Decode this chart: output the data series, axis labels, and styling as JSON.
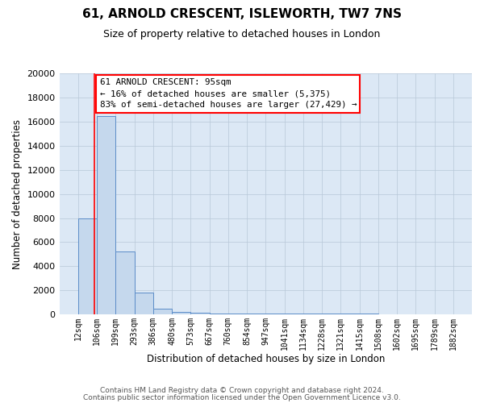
{
  "title": "61, ARNOLD CRESCENT, ISLEWORTH, TW7 7NS",
  "subtitle": "Size of property relative to detached houses in London",
  "xlabel": "Distribution of detached houses by size in London",
  "ylabel": "Number of detached properties",
  "footer_line1": "Contains HM Land Registry data © Crown copyright and database right 2024.",
  "footer_line2": "Contains public sector information licensed under the Open Government Licence v3.0.",
  "annotation_title": "61 ARNOLD CRESCENT: 95sqm",
  "annotation_line1": "← 16% of detached houses are smaller (5,375)",
  "annotation_line2": "83% of semi-detached houses are larger (27,429) →",
  "red_line_x": 95,
  "bar_edges": [
    12,
    106,
    199,
    293,
    386,
    480,
    573,
    667,
    760,
    854,
    947,
    1041,
    1134,
    1228,
    1321,
    1415,
    1508,
    1602,
    1695,
    1789,
    1882
  ],
  "bar_heights": [
    8000,
    16500,
    5200,
    1800,
    500,
    200,
    130,
    100,
    80,
    70,
    60,
    60,
    55,
    50,
    45,
    40,
    35,
    30,
    25,
    20
  ],
  "bar_color": "#c5d8ed",
  "bar_edge_color": "#5b8cc8",
  "ax_bg_color": "#dce8f5",
  "grid_color": "#b8c8d8",
  "background_color": "#ffffff",
  "ylim": [
    0,
    20000
  ],
  "yticks": [
    0,
    2000,
    4000,
    6000,
    8000,
    10000,
    12000,
    14000,
    16000,
    18000,
    20000
  ],
  "tick_labels": [
    "12sqm",
    "106sqm",
    "199sqm",
    "293sqm",
    "386sqm",
    "480sqm",
    "573sqm",
    "667sqm",
    "760sqm",
    "854sqm",
    "947sqm",
    "1041sqm",
    "1134sqm",
    "1228sqm",
    "1321sqm",
    "1415sqm",
    "1508sqm",
    "1602sqm",
    "1695sqm",
    "1789sqm",
    "1882sqm"
  ]
}
